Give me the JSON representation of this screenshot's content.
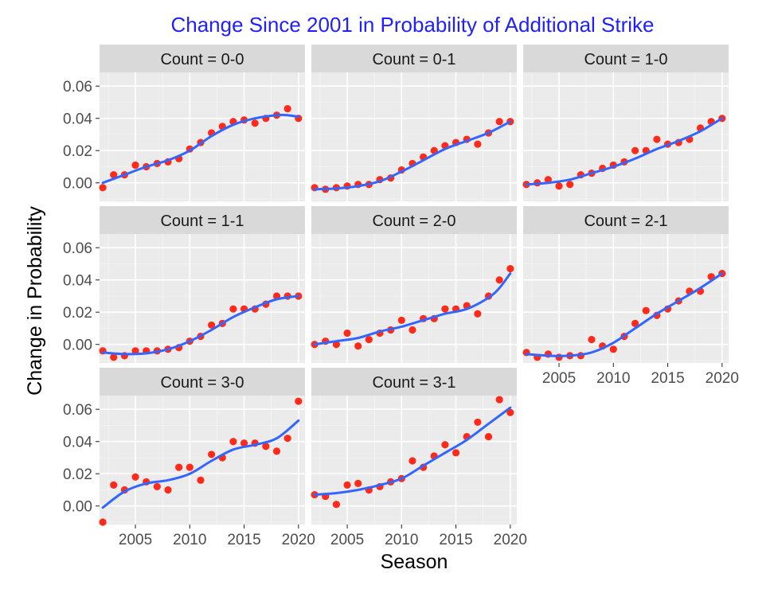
{
  "chart_data": {
    "type": "scatter",
    "title": "Change Since 2001 in Probability of Additional Strike",
    "xlabel": "Season",
    "ylabel": "Change in Probability",
    "xlim": [
      2001.7,
      2020.6
    ],
    "ylim": [
      -0.0115,
      0.0685
    ],
    "x_ticks": [
      2005,
      2010,
      2015,
      2020
    ],
    "y_ticks": [
      0.0,
      0.02,
      0.04,
      0.06
    ],
    "x_tick_labels": [
      "2005",
      "2010",
      "2015",
      "2020"
    ],
    "y_tick_labels": [
      "0.00",
      "0.02",
      "0.04",
      "0.06"
    ],
    "grid": true,
    "point_color": "#ff2a1a",
    "smooth_color": "#3366ff",
    "title_color": "#1f1fff",
    "facet_label_prefix": "Count = ",
    "panels": [
      {
        "facet": "0-0",
        "x": [
          2002,
          2003,
          2004,
          2005,
          2006,
          2007,
          2008,
          2009,
          2010,
          2011,
          2012,
          2013,
          2014,
          2015,
          2016,
          2017,
          2018,
          2019,
          2020
        ],
        "y": [
          -0.003,
          0.005,
          0.005,
          0.011,
          0.01,
          0.012,
          0.013,
          0.015,
          0.021,
          0.025,
          0.031,
          0.035,
          0.038,
          0.039,
          0.037,
          0.04,
          0.042,
          0.046,
          0.04
        ],
        "smooth_x": [
          2002,
          2004,
          2006,
          2008,
          2010,
          2012,
          2014,
          2016,
          2018,
          2019,
          2020
        ],
        "smooth_y": [
          0.0,
          0.005,
          0.01,
          0.014,
          0.02,
          0.029,
          0.036,
          0.04,
          0.042,
          0.042,
          0.041
        ]
      },
      {
        "facet": "0-1",
        "x": [
          2002,
          2003,
          2004,
          2005,
          2006,
          2007,
          2008,
          2009,
          2010,
          2011,
          2012,
          2013,
          2014,
          2015,
          2016,
          2017,
          2018,
          2019,
          2020
        ],
        "y": [
          -0.003,
          -0.004,
          -0.003,
          -0.002,
          -0.001,
          -0.001,
          0.002,
          0.003,
          0.008,
          0.012,
          0.016,
          0.02,
          0.023,
          0.025,
          0.027,
          0.024,
          0.031,
          0.038,
          0.038
        ],
        "smooth_x": [
          2002,
          2004,
          2006,
          2008,
          2010,
          2012,
          2014,
          2016,
          2018,
          2020
        ],
        "smooth_y": [
          -0.004,
          -0.0035,
          -0.002,
          0.001,
          0.007,
          0.014,
          0.021,
          0.026,
          0.031,
          0.038
        ]
      },
      {
        "facet": "1-0",
        "x": [
          2002,
          2003,
          2004,
          2005,
          2006,
          2007,
          2008,
          2009,
          2010,
          2011,
          2012,
          2013,
          2014,
          2015,
          2016,
          2017,
          2018,
          2019,
          2020
        ],
        "y": [
          -0.001,
          0.0,
          0.002,
          -0.002,
          -0.001,
          0.005,
          0.006,
          0.009,
          0.011,
          0.013,
          0.02,
          0.02,
          0.027,
          0.024,
          0.025,
          0.027,
          0.034,
          0.038,
          0.04
        ],
        "smooth_x": [
          2002,
          2004,
          2006,
          2008,
          2010,
          2012,
          2014,
          2016,
          2018,
          2020
        ],
        "smooth_y": [
          -0.001,
          0.0,
          0.002,
          0.006,
          0.01,
          0.015,
          0.021,
          0.026,
          0.032,
          0.04
        ]
      },
      {
        "facet": "1-1",
        "x": [
          2002,
          2003,
          2004,
          2005,
          2006,
          2007,
          2008,
          2009,
          2010,
          2011,
          2012,
          2013,
          2014,
          2015,
          2016,
          2017,
          2018,
          2019,
          2020
        ],
        "y": [
          -0.004,
          -0.008,
          -0.007,
          -0.004,
          -0.004,
          -0.004,
          -0.003,
          -0.002,
          0.002,
          0.005,
          0.012,
          0.013,
          0.022,
          0.022,
          0.022,
          0.025,
          0.03,
          0.03,
          0.03
        ],
        "smooth_x": [
          2002,
          2004,
          2006,
          2008,
          2010,
          2012,
          2014,
          2016,
          2018,
          2020
        ],
        "smooth_y": [
          -0.005,
          -0.006,
          -0.0055,
          -0.003,
          0.002,
          0.009,
          0.017,
          0.023,
          0.028,
          0.03
        ]
      },
      {
        "facet": "2-0",
        "x": [
          2002,
          2003,
          2004,
          2005,
          2006,
          2007,
          2008,
          2009,
          2010,
          2011,
          2012,
          2013,
          2014,
          2015,
          2016,
          2017,
          2018,
          2019,
          2020
        ],
        "y": [
          0.0,
          0.002,
          0.0,
          0.007,
          -0.001,
          0.003,
          0.007,
          0.009,
          0.015,
          0.009,
          0.016,
          0.016,
          0.022,
          0.022,
          0.024,
          0.019,
          0.03,
          0.04,
          0.047
        ],
        "smooth_x": [
          2002,
          2004,
          2006,
          2008,
          2010,
          2012,
          2014,
          2016,
          2018,
          2019,
          2020
        ],
        "smooth_y": [
          0.0,
          0.002,
          0.004,
          0.008,
          0.011,
          0.015,
          0.019,
          0.022,
          0.029,
          0.035,
          0.044
        ]
      },
      {
        "facet": "2-1",
        "x": [
          2002,
          2003,
          2004,
          2005,
          2006,
          2007,
          2008,
          2009,
          2010,
          2011,
          2012,
          2013,
          2014,
          2015,
          2016,
          2017,
          2018,
          2019,
          2020
        ],
        "y": [
          -0.005,
          -0.008,
          -0.006,
          -0.008,
          -0.007,
          -0.007,
          0.003,
          -0.001,
          -0.003,
          0.005,
          0.013,
          0.021,
          0.018,
          0.022,
          0.027,
          0.033,
          0.033,
          0.042,
          0.044
        ],
        "smooth_x": [
          2002,
          2004,
          2006,
          2008,
          2010,
          2012,
          2014,
          2016,
          2018,
          2020
        ],
        "smooth_y": [
          -0.006,
          -0.007,
          -0.007,
          -0.005,
          0.001,
          0.01,
          0.019,
          0.027,
          0.035,
          0.044
        ]
      },
      {
        "facet": "3-0",
        "x": [
          2002,
          2003,
          2004,
          2005,
          2006,
          2007,
          2008,
          2009,
          2010,
          2011,
          2012,
          2013,
          2014,
          2015,
          2016,
          2017,
          2018,
          2019,
          2020
        ],
        "y": [
          -0.01,
          0.013,
          0.01,
          0.018,
          0.015,
          0.012,
          0.01,
          0.024,
          0.024,
          0.016,
          0.032,
          0.03,
          0.04,
          0.039,
          0.039,
          0.037,
          0.034,
          0.042,
          0.065
        ],
        "smooth_x": [
          2002,
          2004,
          2006,
          2008,
          2010,
          2012,
          2014,
          2016,
          2018,
          2020
        ],
        "smooth_y": [
          -0.001,
          0.009,
          0.014,
          0.016,
          0.02,
          0.028,
          0.035,
          0.038,
          0.042,
          0.053
        ]
      },
      {
        "facet": "3-1",
        "x": [
          2002,
          2003,
          2004,
          2005,
          2006,
          2007,
          2008,
          2009,
          2010,
          2011,
          2012,
          2013,
          2014,
          2015,
          2016,
          2017,
          2018,
          2019,
          2020
        ],
        "y": [
          0.007,
          0.006,
          0.001,
          0.013,
          0.014,
          0.01,
          0.012,
          0.015,
          0.017,
          0.028,
          0.024,
          0.031,
          0.038,
          0.033,
          0.043,
          0.052,
          0.043,
          0.066,
          0.058
        ],
        "smooth_x": [
          2002,
          2004,
          2006,
          2008,
          2010,
          2012,
          2014,
          2016,
          2018,
          2020
        ],
        "smooth_y": [
          0.007,
          0.008,
          0.01,
          0.013,
          0.017,
          0.025,
          0.033,
          0.041,
          0.051,
          0.061
        ]
      }
    ]
  }
}
